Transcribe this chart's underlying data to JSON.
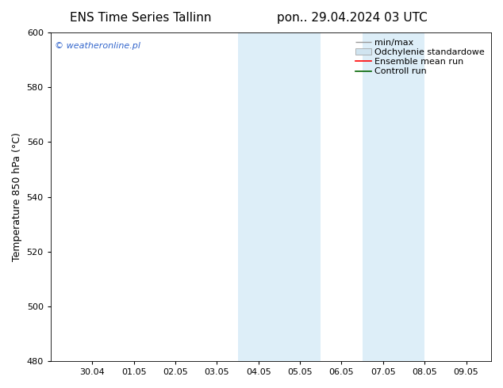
{
  "title_left": "ENS Time Series Tallinn",
  "title_right": "pon.. 29.04.2024 03 UTC",
  "ylabel": "Temperature 850 hPa (°C)",
  "ylim": [
    480,
    600
  ],
  "yticks": [
    480,
    500,
    520,
    540,
    560,
    580,
    600
  ],
  "xtick_labels": [
    "30.04",
    "01.05",
    "02.05",
    "03.05",
    "04.05",
    "05.05",
    "06.05",
    "07.05",
    "08.05",
    "09.05"
  ],
  "xtick_positions": [
    1,
    2,
    3,
    4,
    5,
    6,
    7,
    8,
    9,
    10
  ],
  "xlim": [
    -0.0,
    10.6
  ],
  "shaded_bands": [
    {
      "x_start": 4.5,
      "x_end": 6.5,
      "color": "#ddeef8"
    },
    {
      "x_start": 7.5,
      "x_end": 9.0,
      "color": "#ddeef8"
    }
  ],
  "legend_entries": [
    {
      "label": "min/max",
      "color": "#aaaaaa",
      "style": "line_with_caps"
    },
    {
      "label": "Odchylenie standardowe",
      "color": "#ccddee",
      "style": "filled_box"
    },
    {
      "label": "Ensemble mean run",
      "color": "red",
      "style": "line"
    },
    {
      "label": "Controll run",
      "color": "darkgreen",
      "style": "line"
    }
  ],
  "watermark_text": "© weatheronline.pl",
  "watermark_color": "#3366cc",
  "background_color": "#ffffff",
  "plot_bg_color": "#ffffff",
  "border_color": "#000000",
  "title_fontsize": 11,
  "axis_label_fontsize": 9,
  "tick_fontsize": 8,
  "legend_fontsize": 8
}
